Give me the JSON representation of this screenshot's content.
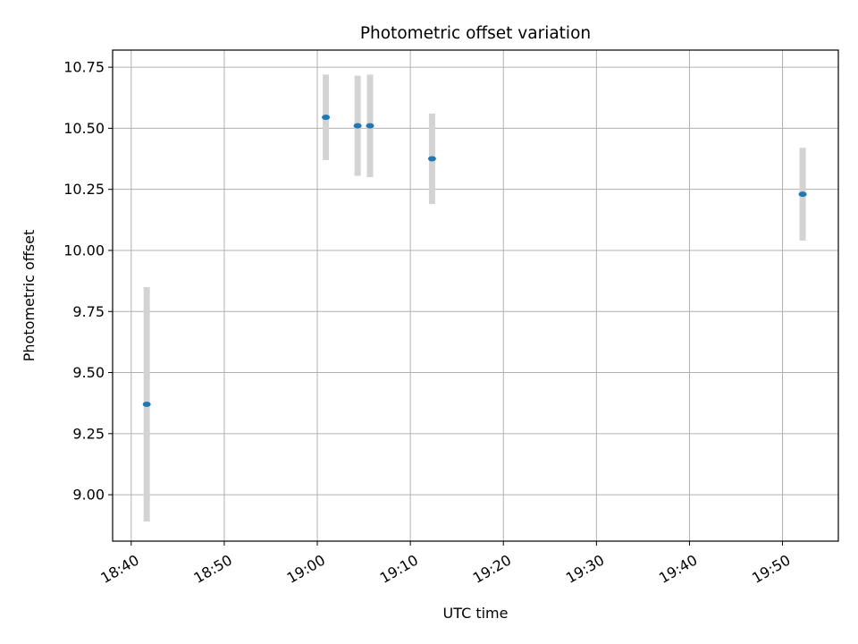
{
  "chart_data": {
    "type": "scatter",
    "title": "Photometric offset variation",
    "xlabel": "UTC time",
    "ylabel": "Photometric offset",
    "x_ticks": [
      "18:40",
      "18:50",
      "19:00",
      "19:10",
      "19:20",
      "19:30",
      "19:40",
      "19:50"
    ],
    "y_ticks": [
      "9.00",
      "9.25",
      "9.50",
      "9.75",
      "10.00",
      "10.25",
      "10.50",
      "10.75"
    ],
    "xlim": [
      "18:38",
      "19:56"
    ],
    "ylim": [
      8.81,
      10.82
    ],
    "grid": true,
    "marker_color": "#1f77b4",
    "errorbar_color": "#d3d3d3",
    "points": [
      {
        "time": "18:41:40",
        "value": 9.37,
        "err": 0.48
      },
      {
        "time": "19:00:55",
        "value": 10.545,
        "err": 0.175
      },
      {
        "time": "19:04:20",
        "value": 10.51,
        "err": 0.205
      },
      {
        "time": "19:05:40",
        "value": 10.51,
        "err": 0.21
      },
      {
        "time": "19:12:20",
        "value": 10.375,
        "err": 0.185
      },
      {
        "time": "19:52:10",
        "value": 10.23,
        "err": 0.19
      }
    ]
  }
}
